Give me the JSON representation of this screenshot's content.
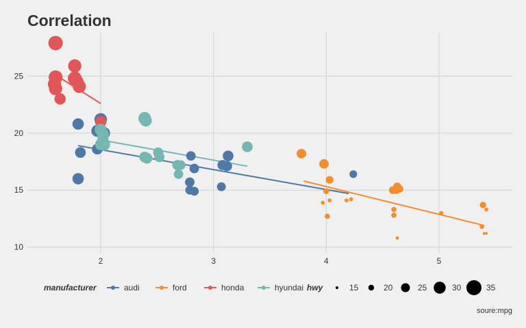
{
  "chart_data": {
    "type": "scatter",
    "title": "Correlation",
    "xlabel": "",
    "ylabel": "",
    "caption": "soure:mpg",
    "xlim": [
      1.35,
      5.65
    ],
    "ylim": [
      9.5,
      28.8
    ],
    "x_ticks": [
      2,
      3,
      4,
      5
    ],
    "y_ticks": [
      10,
      15,
      20,
      25
    ],
    "grid": true,
    "legend_position": "bottom",
    "color_legend": {
      "title": "manufacturer",
      "items": [
        {
          "label": "audi",
          "color": "#4e79a7"
        },
        {
          "label": "ford",
          "color": "#f28e2b"
        },
        {
          "label": "honda",
          "color": "#e15759"
        },
        {
          "label": "hyundai",
          "color": "#76b7b2"
        }
      ]
    },
    "size_legend": {
      "title": "hwy",
      "items": [
        {
          "label": "15",
          "value": 15
        },
        {
          "label": "20",
          "value": 20
        },
        {
          "label": "25",
          "value": 25
        },
        {
          "label": "30",
          "value": 30
        },
        {
          "label": "35",
          "value": 35
        }
      ]
    },
    "series": [
      {
        "name": "audi",
        "color": "#4e79a7",
        "points": [
          {
            "x": 1.8,
            "y": 20.8,
            "hwy": 29
          },
          {
            "x": 1.8,
            "y": 16.0,
            "hwy": 29
          },
          {
            "x": 1.82,
            "y": 18.3,
            "hwy": 28
          },
          {
            "x": 1.97,
            "y": 18.6,
            "hwy": 28
          },
          {
            "x": 1.97,
            "y": 20.2,
            "hwy": 30
          },
          {
            "x": 2.0,
            "y": 21.2,
            "hwy": 31
          },
          {
            "x": 2.03,
            "y": 20.0,
            "hwy": 30
          },
          {
            "x": 2.8,
            "y": 18.0,
            "hwy": 26
          },
          {
            "x": 2.79,
            "y": 15.7,
            "hwy": 26
          },
          {
            "x": 2.79,
            "y": 15.0,
            "hwy": 25
          },
          {
            "x": 2.83,
            "y": 14.9,
            "hwy": 25
          },
          {
            "x": 2.83,
            "y": 16.9,
            "hwy": 26
          },
          {
            "x": 3.08,
            "y": 17.2,
            "hwy": 27
          },
          {
            "x": 3.12,
            "y": 17.1,
            "hwy": 27
          },
          {
            "x": 3.13,
            "y": 18.0,
            "hwy": 28
          },
          {
            "x": 3.07,
            "y": 15.3,
            "hwy": 25
          },
          {
            "x": 4.24,
            "y": 16.4,
            "hwy": 23
          }
        ]
      },
      {
        "name": "ford",
        "color": "#f28e2b",
        "points": [
          {
            "x": 3.78,
            "y": 18.2,
            "hwy": 26
          },
          {
            "x": 3.98,
            "y": 17.3,
            "hwy": 26
          },
          {
            "x": 4.03,
            "y": 15.9,
            "hwy": 23
          },
          {
            "x": 4.0,
            "y": 14.9,
            "hwy": 20
          },
          {
            "x": 4.03,
            "y": 14.1,
            "hwy": 17
          },
          {
            "x": 3.97,
            "y": 13.9,
            "hwy": 17
          },
          {
            "x": 4.01,
            "y": 12.7,
            "hwy": 19
          },
          {
            "x": 4.18,
            "y": 14.1,
            "hwy": 17
          },
          {
            "x": 4.22,
            "y": 14.2,
            "hwy": 17
          },
          {
            "x": 4.59,
            "y": 15.0,
            "hwy": 23
          },
          {
            "x": 4.63,
            "y": 15.3,
            "hwy": 24
          },
          {
            "x": 4.62,
            "y": 15.0,
            "hwy": 23
          },
          {
            "x": 4.65,
            "y": 15.1,
            "hwy": 23
          },
          {
            "x": 4.6,
            "y": 13.3,
            "hwy": 19
          },
          {
            "x": 4.6,
            "y": 12.8,
            "hwy": 19
          },
          {
            "x": 4.63,
            "y": 10.8,
            "hwy": 16
          },
          {
            "x": 5.02,
            "y": 13.0,
            "hwy": 17
          },
          {
            "x": 5.39,
            "y": 13.7,
            "hwy": 21
          },
          {
            "x": 5.42,
            "y": 13.3,
            "hwy": 17
          },
          {
            "x": 5.38,
            "y": 11.8,
            "hwy": 18
          },
          {
            "x": 5.42,
            "y": 11.2,
            "hwy": 15
          },
          {
            "x": 5.4,
            "y": 11.2,
            "hwy": 15
          }
        ]
      },
      {
        "name": "honda",
        "color": "#e15759",
        "points": [
          {
            "x": 1.6,
            "y": 27.9,
            "hwy": 34
          },
          {
            "x": 1.6,
            "y": 24.9,
            "hwy": 33
          },
          {
            "x": 1.59,
            "y": 24.3,
            "hwy": 32
          },
          {
            "x": 1.6,
            "y": 23.9,
            "hwy": 32
          },
          {
            "x": 1.64,
            "y": 23.0,
            "hwy": 29
          },
          {
            "x": 1.77,
            "y": 25.9,
            "hwy": 32
          },
          {
            "x": 1.77,
            "y": 24.8,
            "hwy": 33
          },
          {
            "x": 1.79,
            "y": 24.5,
            "hwy": 32
          },
          {
            "x": 1.81,
            "y": 24.1,
            "hwy": 32
          },
          {
            "x": 2.0,
            "y": 21.0,
            "hwy": 29
          }
        ]
      },
      {
        "name": "hyundai",
        "color": "#76b7b2",
        "points": [
          {
            "x": 2.0,
            "y": 20.3,
            "hwy": 30
          },
          {
            "x": 2.02,
            "y": 19.9,
            "hwy": 30
          },
          {
            "x": 2.02,
            "y": 19.4,
            "hwy": 29
          },
          {
            "x": 2.03,
            "y": 19.0,
            "hwy": 30
          },
          {
            "x": 2.0,
            "y": 19.0,
            "hwy": 29
          },
          {
            "x": 2.39,
            "y": 21.3,
            "hwy": 31
          },
          {
            "x": 2.4,
            "y": 21.1,
            "hwy": 30
          },
          {
            "x": 2.39,
            "y": 17.9,
            "hwy": 28
          },
          {
            "x": 2.41,
            "y": 17.8,
            "hwy": 28
          },
          {
            "x": 2.51,
            "y": 18.3,
            "hwy": 27
          },
          {
            "x": 2.52,
            "y": 17.9,
            "hwy": 27
          },
          {
            "x": 2.68,
            "y": 17.2,
            "hwy": 27
          },
          {
            "x": 2.71,
            "y": 17.2,
            "hwy": 26
          },
          {
            "x": 2.69,
            "y": 16.4,
            "hwy": 26
          },
          {
            "x": 3.3,
            "y": 18.8,
            "hwy": 28
          }
        ]
      }
    ],
    "trend_lines": [
      {
        "name": "audi",
        "color": "#4e79a7",
        "x": [
          1.8,
          4.2
        ],
        "y": [
          18.9,
          14.7
        ]
      },
      {
        "name": "ford",
        "color": "#f28e2b",
        "x": [
          3.8,
          5.4
        ],
        "y": [
          15.8,
          11.9
        ]
      },
      {
        "name": "honda",
        "color": "#e15759",
        "x": [
          1.6,
          2.0
        ],
        "y": [
          25.1,
          22.6
        ]
      },
      {
        "name": "hyundai",
        "color": "#76b7b2",
        "x": [
          2.0,
          3.3
        ],
        "y": [
          19.4,
          17.1
        ]
      }
    ]
  }
}
